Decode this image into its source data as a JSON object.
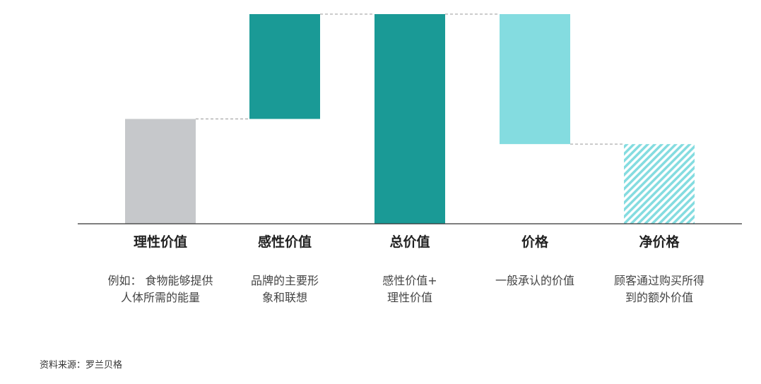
{
  "chart_data": {
    "type": "waterfall",
    "title": "",
    "xlabel": "",
    "ylabel": "",
    "ylim": [
      0,
      100
    ],
    "grid": false,
    "categories": [
      "理性价值",
      "感性价值",
      "总价值",
      "价格",
      "净价格"
    ],
    "descriptions": [
      [
        "例如： 食物能够提供",
        "人体所需的能量"
      ],
      [
        "品牌的主要形",
        "象和联想"
      ],
      [
        "感性价值+",
        "理性价值"
      ],
      [
        "一般承认的价值"
      ],
      [
        "顾客通过购买所得",
        "到的额外价值"
      ]
    ],
    "bars": [
      {
        "label": "理性价值",
        "base": 0,
        "value": 50,
        "style": "solid",
        "color": "#c6c8cb"
      },
      {
        "label": "感性价值",
        "base": 50,
        "value": 50,
        "style": "solid",
        "color": "#1a9a96"
      },
      {
        "label": "总价值",
        "base": 0,
        "value": 100,
        "style": "solid",
        "color": "#1a9a96"
      },
      {
        "label": "价格",
        "base": 38,
        "value": 62,
        "style": "solid",
        "color": "#84dce0"
      },
      {
        "label": "净价格",
        "base": 0,
        "value": 38,
        "style": "hatched",
        "color": "#84dce0"
      }
    ]
  },
  "source": "资料来源：罗兰贝格"
}
